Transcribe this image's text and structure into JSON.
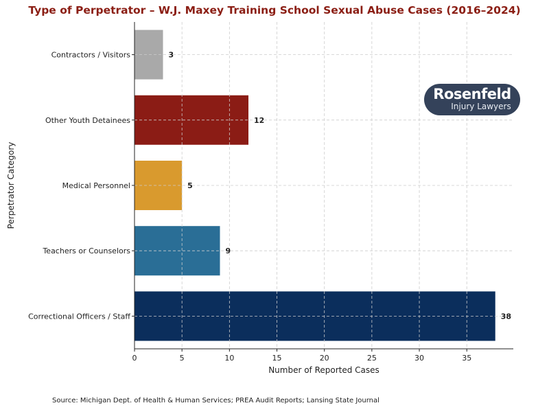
{
  "chart_data": {
    "type": "bar",
    "orientation": "horizontal",
    "title": "Type of Perpetrator – W.J. Maxey Training School Sexual Abuse Cases (2016–2024)",
    "xlabel": "Number of Reported Cases",
    "ylabel": "Perpetrator Category",
    "categories": [
      "Correctional Officers / Staff",
      "Teachers or Counselors",
      "Medical Personnel",
      "Other Youth Detainees",
      "Contractors / Visitors"
    ],
    "values": [
      38,
      9,
      5,
      12,
      3
    ],
    "colors": [
      "#0b2e5c",
      "#2a6e96",
      "#d99a2e",
      "#8b1c15",
      "#a9a9a9"
    ],
    "xlim": [
      0,
      39.9
    ],
    "xticks": [
      0,
      5,
      10,
      15,
      20,
      25,
      30,
      35
    ],
    "grid": true,
    "data_labels": true
  },
  "logo": {
    "line1": "Rosenfeld",
    "line2": "Injury Lawyers"
  },
  "source": "Source: Michigan Dept. of Health & Human Services; PREA Audit Reports; Lansing State Journal"
}
